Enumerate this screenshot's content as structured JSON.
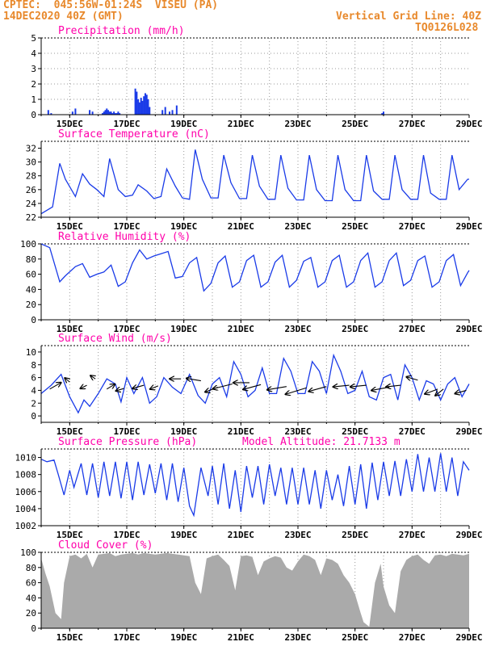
{
  "header": {
    "source_line": "CPTEC:  045:56W-01:24S  VISEU (PA)",
    "date_line": "14DEC2020 40Z (GMT)",
    "grid_line": "Vertical Grid Line: 40Z",
    "code": "TQ0126L028"
  },
  "colors": {
    "header": "#e8892c",
    "title": "#ff00aa",
    "series": "#1a3be8",
    "cloud": "#aaaaaa",
    "wind_arrow": "#000000"
  },
  "x_ticks": [
    "15DEC",
    "17DEC",
    "19DEC",
    "21DEC",
    "23DEC",
    "25DEC",
    "27DEC",
    "29DEC"
  ],
  "chart_data": [
    {
      "id": "precip",
      "type": "bar",
      "title": "Precipitation (mm/h)",
      "ylim": [
        0,
        5
      ],
      "yticks": [
        0,
        1,
        2,
        3,
        4,
        5
      ],
      "x": [
        14.25,
        14.35,
        15.1,
        15.2,
        15.7,
        15.8,
        16.15,
        16.2,
        16.25,
        16.3,
        16.35,
        16.4,
        16.45,
        16.5,
        16.55,
        16.6,
        16.65,
        16.7,
        16.75,
        17.3,
        17.35,
        17.4,
        17.45,
        17.5,
        17.55,
        17.6,
        17.65,
        17.7,
        17.75,
        17.8,
        18.25,
        18.35,
        18.5,
        18.6,
        18.75,
        25.95,
        26.0
      ],
      "values": [
        0.3,
        0.1,
        0.2,
        0.4,
        0.3,
        0.2,
        0.1,
        0.2,
        0.3,
        0.4,
        0.3,
        0.2,
        0.2,
        0.1,
        0.2,
        0.1,
        0.1,
        0.2,
        0.1,
        1.7,
        1.5,
        1.0,
        0.8,
        1.1,
        0.9,
        1.2,
        1.4,
        1.3,
        1.0,
        0.5,
        0.3,
        0.5,
        0.2,
        0.3,
        0.6,
        0.1,
        0.2
      ],
      "grid": true
    },
    {
      "id": "temp",
      "type": "line",
      "title": "Surface Temperature (nC)",
      "ylim": [
        22,
        33
      ],
      "yticks": [
        22,
        24,
        26,
        28,
        30,
        32
      ],
      "x": [
        14.0,
        14.4,
        14.65,
        14.85,
        15.2,
        15.45,
        15.7,
        15.95,
        16.2,
        16.4,
        16.7,
        16.95,
        17.2,
        17.4,
        17.7,
        17.95,
        18.2,
        18.4,
        18.7,
        18.95,
        19.2,
        19.4,
        19.65,
        19.95,
        20.2,
        20.4,
        20.65,
        20.95,
        21.2,
        21.4,
        21.65,
        21.95,
        22.2,
        22.4,
        22.65,
        22.95,
        23.2,
        23.4,
        23.65,
        23.95,
        24.2,
        24.4,
        24.65,
        24.95,
        25.2,
        25.4,
        25.65,
        25.95,
        26.2,
        26.4,
        26.65,
        26.95,
        27.2,
        27.4,
        27.65,
        27.95,
        28.2,
        28.4,
        28.65,
        28.95,
        29.0
      ],
      "values": [
        22.5,
        23.5,
        29.8,
        27.5,
        25.0,
        28.3,
        26.8,
        26.0,
        25.0,
        30.5,
        26.0,
        25.0,
        25.2,
        26.7,
        25.8,
        24.7,
        25.0,
        29.0,
        26.5,
        24.8,
        24.6,
        31.8,
        27.5,
        24.8,
        24.8,
        31.0,
        27.0,
        24.7,
        24.7,
        31.0,
        26.5,
        24.6,
        24.6,
        31.0,
        26.2,
        24.5,
        24.5,
        31.0,
        26.0,
        24.4,
        24.4,
        31.0,
        26.0,
        24.4,
        24.4,
        31.0,
        25.8,
        24.6,
        24.6,
        31.0,
        26.0,
        24.6,
        24.6,
        31.0,
        25.5,
        24.6,
        24.6,
        31.0,
        26.0,
        27.5,
        27.5
      ]
    },
    {
      "id": "rh",
      "type": "line",
      "title": "Relative Humidity (%)",
      "ylim": [
        0,
        100
      ],
      "yticks": [
        0,
        20,
        40,
        60,
        80,
        100
      ],
      "x": [
        14.0,
        14.3,
        14.65,
        14.85,
        15.2,
        15.45,
        15.7,
        15.95,
        16.2,
        16.45,
        16.7,
        16.95,
        17.2,
        17.45,
        17.7,
        17.95,
        18.2,
        18.45,
        18.7,
        18.95,
        19.2,
        19.45,
        19.7,
        19.95,
        20.2,
        20.45,
        20.7,
        20.95,
        21.2,
        21.45,
        21.7,
        21.95,
        22.2,
        22.45,
        22.7,
        22.95,
        23.2,
        23.45,
        23.7,
        23.95,
        24.2,
        24.45,
        24.7,
        24.95,
        25.2,
        25.45,
        25.7,
        25.95,
        26.2,
        26.45,
        26.7,
        26.95,
        27.2,
        27.45,
        27.7,
        27.95,
        28.2,
        28.45,
        28.7,
        28.95,
        29.0
      ],
      "values": [
        100,
        95,
        50,
        58,
        70,
        74,
        56,
        60,
        63,
        72,
        44,
        50,
        75,
        92,
        80,
        84,
        87,
        90,
        55,
        57,
        75,
        82,
        38,
        48,
        75,
        84,
        43,
        50,
        78,
        85,
        43,
        50,
        76,
        85,
        43,
        52,
        77,
        82,
        43,
        50,
        78,
        85,
        43,
        50,
        78,
        88,
        43,
        50,
        78,
        88,
        45,
        52,
        78,
        84,
        43,
        50,
        78,
        86,
        45,
        62,
        65
      ]
    },
    {
      "id": "wind",
      "type": "line",
      "title": "Surface Wind (m/s)",
      "ylim": [
        -1,
        11
      ],
      "yticks": [
        0,
        2,
        4,
        6,
        8,
        10
      ],
      "x": [
        14.0,
        14.35,
        14.7,
        15.0,
        15.3,
        15.5,
        15.7,
        16.0,
        16.3,
        16.6,
        16.8,
        17.0,
        17.25,
        17.55,
        17.8,
        18.05,
        18.3,
        18.6,
        18.9,
        19.2,
        19.5,
        19.75,
        20.0,
        20.25,
        20.5,
        20.75,
        21.0,
        21.25,
        21.5,
        21.75,
        22.0,
        22.25,
        22.5,
        22.75,
        23.0,
        23.25,
        23.5,
        23.75,
        24.0,
        24.25,
        24.5,
        24.75,
        25.0,
        25.25,
        25.5,
        25.75,
        26.0,
        26.25,
        26.5,
        26.75,
        27.0,
        27.25,
        27.5,
        27.75,
        28.0,
        28.25,
        28.5,
        28.75,
        29.0
      ],
      "values": [
        3.5,
        4.8,
        6.5,
        3.0,
        0.5,
        2.5,
        1.5,
        3.5,
        5.8,
        5.0,
        2.2,
        6.0,
        3.5,
        6.0,
        2.0,
        3.0,
        6.0,
        4.5,
        3.5,
        6.5,
        3.2,
        2.0,
        5.0,
        6.0,
        3.0,
        8.5,
        6.5,
        3.0,
        4.0,
        7.5,
        3.5,
        3.5,
        9.0,
        7.0,
        3.5,
        3.5,
        8.5,
        7.0,
        3.5,
        9.5,
        7.0,
        3.5,
        4.0,
        7.0,
        3.0,
        2.5,
        6.0,
        6.5,
        2.5,
        8.0,
        6.0,
        2.5,
        5.5,
        5.0,
        2.5,
        5.0,
        6.0,
        3.0,
        5.0
      ],
      "arrows": [
        {
          "x": 14.3,
          "y": 4.2,
          "dx": 14,
          "dy": -8
        },
        {
          "x": 15.0,
          "y": 5.3,
          "dx": -6,
          "dy": -5
        },
        {
          "x": 15.9,
          "y": 5.8,
          "dx": -6,
          "dy": -4
        },
        {
          "x": 16.3,
          "y": 4.2,
          "dx": 10,
          "dy": -6
        },
        {
          "x": 15.6,
          "y": 4.8,
          "dx": -8,
          "dy": 4
        },
        {
          "x": 16.9,
          "y": 4.3,
          "dx": -10,
          "dy": 3
        },
        {
          "x": 17.6,
          "y": 4.8,
          "dx": -14,
          "dy": 4
        },
        {
          "x": 18.1,
          "y": 4.7,
          "dx": -10,
          "dy": 4
        },
        {
          "x": 18.9,
          "y": 5.8,
          "dx": -14,
          "dy": 0
        },
        {
          "x": 19.6,
          "y": 5.5,
          "dx": -18,
          "dy": -3
        },
        {
          "x": 20.2,
          "y": 4.5,
          "dx": -16,
          "dy": 6
        },
        {
          "x": 20.7,
          "y": 5.0,
          "dx": -24,
          "dy": 6
        },
        {
          "x": 21.3,
          "y": 5.2,
          "dx": -20,
          "dy": 0
        },
        {
          "x": 21.7,
          "y": 4.9,
          "dx": -22,
          "dy": 6
        },
        {
          "x": 22.6,
          "y": 4.6,
          "dx": -24,
          "dy": 4
        },
        {
          "x": 23.3,
          "y": 4.4,
          "dx": -26,
          "dy": 8
        },
        {
          "x": 24.0,
          "y": 4.6,
          "dx": -22,
          "dy": 6
        },
        {
          "x": 24.8,
          "y": 4.8,
          "dx": -20,
          "dy": 2
        },
        {
          "x": 25.4,
          "y": 4.8,
          "dx": -20,
          "dy": 2
        },
        {
          "x": 26.2,
          "y": 4.5,
          "dx": -22,
          "dy": 4
        },
        {
          "x": 26.6,
          "y": 4.8,
          "dx": -18,
          "dy": 2
        },
        {
          "x": 27.2,
          "y": 5.6,
          "dx": -14,
          "dy": -4
        },
        {
          "x": 27.9,
          "y": 4.2,
          "dx": -16,
          "dy": 6
        },
        {
          "x": 28.1,
          "y": 4.2,
          "dx": -10,
          "dy": 8
        },
        {
          "x": 28.9,
          "y": 4.0,
          "dx": -14,
          "dy": 4
        }
      ]
    },
    {
      "id": "pressure",
      "type": "line",
      "title": "Surface Pressure (hPa)",
      "altitude_label": "Model Altitude: 21.7133 m",
      "ylim": [
        1002,
        1011
      ],
      "yticks": [
        1002,
        1004,
        1006,
        1008,
        1010
      ],
      "x": [
        14.0,
        14.2,
        14.45,
        14.6,
        14.8,
        15.0,
        15.15,
        15.4,
        15.6,
        15.8,
        16.0,
        16.2,
        16.4,
        16.6,
        16.8,
        17.0,
        17.2,
        17.4,
        17.6,
        17.8,
        18.0,
        18.2,
        18.4,
        18.6,
        18.8,
        19.0,
        19.2,
        19.35,
        19.6,
        19.85,
        20.0,
        20.2,
        20.4,
        20.6,
        20.8,
        21.0,
        21.2,
        21.4,
        21.6,
        21.8,
        22.0,
        22.2,
        22.4,
        22.6,
        22.8,
        23.0,
        23.2,
        23.4,
        23.6,
        23.8,
        24.0,
        24.2,
        24.4,
        24.6,
        24.8,
        25.0,
        25.2,
        25.4,
        25.6,
        25.8,
        26.0,
        26.2,
        26.4,
        26.6,
        26.8,
        27.0,
        27.2,
        27.4,
        27.6,
        27.8,
        28.0,
        28.2,
        28.4,
        28.6,
        28.8,
        29.0
      ],
      "values": [
        1009.8,
        1009.5,
        1009.7,
        1008.0,
        1005.6,
        1008.5,
        1006.5,
        1009.3,
        1005.6,
        1009.3,
        1005.3,
        1009.5,
        1005.5,
        1009.5,
        1005.2,
        1009.5,
        1005.0,
        1009.5,
        1005.6,
        1009.2,
        1005.8,
        1009.3,
        1005.0,
        1009.3,
        1004.8,
        1008.8,
        1004.3,
        1003.2,
        1008.8,
        1005.5,
        1009.0,
        1004.5,
        1009.3,
        1004.0,
        1008.5,
        1003.6,
        1009.0,
        1005.3,
        1009.0,
        1004.5,
        1009.2,
        1005.5,
        1008.8,
        1004.5,
        1008.8,
        1004.5,
        1008.8,
        1004.5,
        1008.5,
        1004.0,
        1008.5,
        1005.0,
        1008.0,
        1004.3,
        1009.0,
        1004.5,
        1009.2,
        1004.0,
        1009.4,
        1005.0,
        1009.5,
        1005.5,
        1009.6,
        1005.5,
        1009.8,
        1006.0,
        1010.4,
        1006.0,
        1010.0,
        1006.0,
        1010.5,
        1006.0,
        1010.0,
        1005.5,
        1009.5,
        1008.5
      ]
    },
    {
      "id": "cloud",
      "type": "area",
      "title": "Cloud Cover (%)",
      "ylim": [
        0,
        100
      ],
      "yticks": [
        0,
        20,
        40,
        60,
        80,
        100
      ],
      "x": [
        14.0,
        14.15,
        14.3,
        14.5,
        14.7,
        14.8,
        15.0,
        15.2,
        15.4,
        15.6,
        15.8,
        16.0,
        16.2,
        16.4,
        16.6,
        16.8,
        17.0,
        17.2,
        17.4,
        17.6,
        17.8,
        18.0,
        18.2,
        18.4,
        18.6,
        18.8,
        19.0,
        19.2,
        19.4,
        19.6,
        19.8,
        20.0,
        20.2,
        20.4,
        20.6,
        20.8,
        21.0,
        21.2,
        21.4,
        21.6,
        21.8,
        22.0,
        22.2,
        22.4,
        22.6,
        22.8,
        23.0,
        23.2,
        23.4,
        23.6,
        23.8,
        24.0,
        24.2,
        24.4,
        24.6,
        24.8,
        25.0,
        25.2,
        25.3,
        25.5,
        25.7,
        25.9,
        26.0,
        26.2,
        26.4,
        26.6,
        26.8,
        27.0,
        27.2,
        27.4,
        27.6,
        27.8,
        28.0,
        28.2,
        28.4,
        28.6,
        28.8,
        29.0
      ],
      "values": [
        92,
        72,
        55,
        20,
        12,
        60,
        95,
        97,
        92,
        98,
        80,
        97,
        98,
        99,
        95,
        97,
        98,
        99,
        97,
        99,
        98,
        97,
        98,
        99,
        98,
        97,
        96,
        95,
        60,
        45,
        92,
        95,
        97,
        90,
        82,
        50,
        95,
        96,
        94,
        70,
        88,
        92,
        95,
        93,
        80,
        76,
        88,
        97,
        95,
        90,
        70,
        92,
        90,
        85,
        70,
        60,
        45,
        20,
        8,
        2,
        60,
        85,
        55,
        30,
        20,
        75,
        90,
        95,
        97,
        90,
        85,
        96,
        97,
        95,
        98,
        97,
        96,
        98
      ]
    }
  ]
}
